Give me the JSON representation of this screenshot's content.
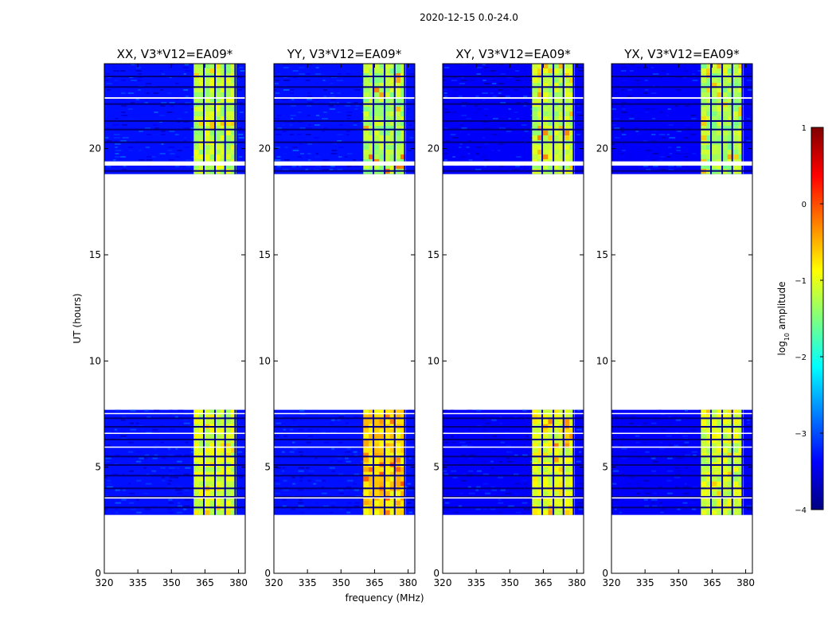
{
  "figure": {
    "suptitle": "2020-12-15 0.0-24.0",
    "xlabel": "frequency (MHz)",
    "ylabel": "UT (hours)"
  },
  "colorbar": {
    "label_prefix": "log",
    "label_sub": "10",
    "label_suffix": " amplitude",
    "range": [
      -4,
      1
    ],
    "ticks": [
      "1",
      "0",
      "−1",
      "−2",
      "−3",
      "−4"
    ],
    "tick_values": [
      1,
      0,
      -1,
      -2,
      -3,
      -4
    ],
    "colormap": "jet",
    "colors": [
      "#00007f",
      "#0000ff",
      "#007fff",
      "#00ffff",
      "#7fff7f",
      "#ffff00",
      "#ff7f00",
      "#ff0000",
      "#7f0000"
    ]
  },
  "chart_data": {
    "type": "heatmap",
    "x_unit": "MHz",
    "y_unit": "UT hours",
    "xlim": [
      320,
      383
    ],
    "ylim": [
      0,
      24
    ],
    "xticks": [
      320,
      335,
      350,
      365,
      380
    ],
    "xtick_labels": [
      "320",
      "335",
      "350",
      "365",
      "380"
    ],
    "yticks": [
      0,
      5,
      10,
      15,
      20
    ],
    "ytick_labels": [
      "0",
      "5",
      "10",
      "15",
      "20"
    ],
    "data_blocks_ut": [
      [
        2.75,
        7.7
      ],
      [
        18.8,
        24.0
      ]
    ],
    "blank_rows_ut": [
      [
        19.2,
        19.4
      ],
      [
        3.52,
        3.58
      ],
      [
        6.58,
        6.62
      ],
      [
        5.92,
        5.97
      ],
      [
        22.35,
        22.42
      ],
      [
        7.5,
        7.55
      ]
    ],
    "dark_rows_ut": [
      3.1,
      3.6,
      4.0,
      4.6,
      5.1,
      5.5,
      6.3,
      6.9,
      7.3,
      20.3,
      20.9,
      21.3,
      22.1,
      22.9,
      23.4,
      18.95
    ],
    "band_range_mhz": [
      360,
      379
    ],
    "band_gaps_mhz": [
      364.5,
      369.5,
      374,
      378.5
    ],
    "panels": [
      {
        "title": "XX, V3*V12=EA09*",
        "background_log_amp": -3.3,
        "band_log_amp_early": -1.1,
        "band_log_amp_late": -1.2,
        "peak_log_amp": -0.8
      },
      {
        "title": "YY, V3*V12=EA09*",
        "background_log_amp": -3.3,
        "band_log_amp_early": -0.7,
        "band_log_amp_late": -1.3,
        "peak_log_amp": -0.2
      },
      {
        "title": "XY, V3*V12=EA09*",
        "background_log_amp": -3.4,
        "band_log_amp_early": -1.0,
        "band_log_amp_late": -1.2,
        "peak_log_amp": -0.4
      },
      {
        "title": "YX, V3*V12=EA09*",
        "background_log_amp": -3.4,
        "band_log_amp_early": -1.1,
        "band_log_amp_late": -1.3,
        "peak_log_amp": -0.7
      }
    ]
  }
}
